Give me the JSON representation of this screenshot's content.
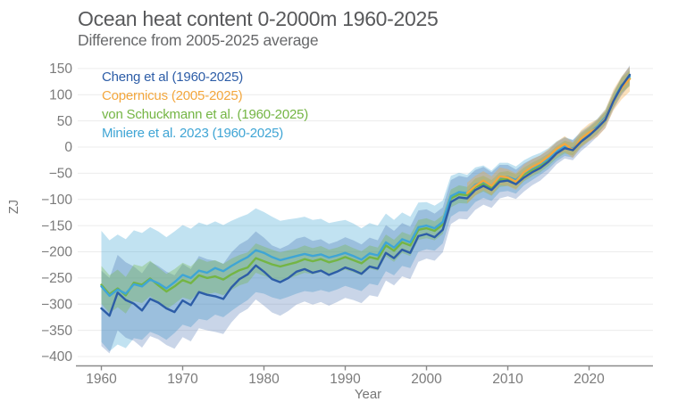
{
  "header": {
    "title": "Ocean heat content 0-2000m 1960-2025",
    "subtitle": "Difference from 2005-2025 average"
  },
  "axes": {
    "y_label": "ZJ",
    "x_label": "Year",
    "y_ticks": [
      150,
      100,
      50,
      0,
      -50,
      -100,
      -150,
      -200,
      -250,
      -300,
      -350,
      -400
    ],
    "x_ticks": [
      1960,
      1970,
      1980,
      1990,
      2000,
      2010,
      2020
    ]
  },
  "colors": {
    "title_text": "#58595b",
    "subtitle_text": "#67686a",
    "axis_text": "#7b7b7b",
    "axis_line": "#8a8a8a",
    "gridline": "#ececec",
    "background": "#ffffff"
  },
  "chart_data": {
    "type": "line",
    "title": "Ocean heat content 0-2000m 1960-2025",
    "subtitle": "Difference from 2005-2025 average",
    "xlabel": "Year",
    "ylabel": "ZJ",
    "xlim": [
      1957,
      2028
    ],
    "ylim": [
      -420,
      160
    ],
    "grid": "horizontal",
    "legend_position": "inside-top-left",
    "units": "ZJ (zettajoules), anomaly relative to 2005-2025 average",
    "legend": [
      {
        "id": "cheng",
        "label": "Cheng et al (1960-2025)",
        "color": "#2d5da7"
      },
      {
        "id": "copernicus",
        "label": "Copernicus (2005-2025)",
        "color": "#f3a73e"
      },
      {
        "id": "vonschuckmann",
        "label": "von Schuckmann et al. (1960-2025)",
        "color": "#74b544"
      },
      {
        "id": "miniere",
        "label": "Miniere et al. 2023 (1960-2025)",
        "color": "#3fa5d5"
      }
    ],
    "series": [
      {
        "id": "cheng",
        "name": "Cheng et al (1960-2025)",
        "color": "#2d5da7",
        "band_opacity": 0.26,
        "x_start": 1960,
        "x_step": 1,
        "values": [
          -308,
          -322,
          -278,
          -292,
          -299,
          -312,
          -290,
          -297,
          -308,
          -315,
          -293,
          -302,
          -277,
          -282,
          -285,
          -290,
          -268,
          -252,
          -243,
          -226,
          -238,
          -252,
          -258,
          -250,
          -238,
          -233,
          -240,
          -236,
          -244,
          -238,
          -230,
          -235,
          -242,
          -228,
          -232,
          -202,
          -212,
          -196,
          -202,
          -170,
          -166,
          -172,
          -158,
          -105,
          -96,
          -98,
          -82,
          -74,
          -82,
          -66,
          -64,
          -71,
          -58,
          -48,
          -40,
          -28,
          -12,
          -2,
          -6,
          10,
          22,
          36,
          52,
          88,
          116,
          138
        ],
        "band_halfwidth": [
          72,
          72,
          72,
          72,
          71,
          71,
          71,
          70,
          70,
          70,
          70,
          69,
          69,
          68,
          68,
          67,
          67,
          66,
          66,
          65,
          65,
          64,
          64,
          63,
          63,
          62,
          61,
          60,
          59,
          58,
          58,
          57,
          56,
          55,
          54,
          53,
          52,
          51,
          50,
          49,
          47,
          45,
          43,
          42,
          41,
          40,
          38,
          36,
          34,
          32,
          30,
          28,
          27,
          25,
          24,
          22,
          21,
          20,
          19,
          18,
          17,
          16,
          16,
          16,
          17,
          18
        ]
      },
      {
        "id": "copernicus",
        "name": "Copernicus (2005-2025)",
        "color": "#f3a73e",
        "band_opacity": 0.35,
        "x_start": 2005,
        "x_step": 1,
        "values": [
          -88,
          -74,
          -64,
          -74,
          -56,
          -58,
          -66,
          -48,
          -38,
          -30,
          -18,
          -4,
          6,
          -6,
          16,
          28,
          36,
          54,
          90,
          113,
          130
        ],
        "band_halfwidth": [
          20,
          19,
          18,
          18,
          17,
          16,
          16,
          15,
          15,
          14,
          14,
          14,
          15,
          15,
          16,
          17,
          17,
          18,
          20,
          22,
          24
        ]
      },
      {
        "id": "vonschuckmann",
        "name": "von Schuckmann et al. (1960-2025)",
        "color": "#74b544",
        "band_opacity": 0.33,
        "x_start": 1960,
        "x_step": 1,
        "values": [
          -263,
          -281,
          -270,
          -283,
          -259,
          -263,
          -251,
          -264,
          -276,
          -266,
          -254,
          -260,
          -245,
          -250,
          -247,
          -253,
          -243,
          -235,
          -230,
          -212,
          -218,
          -224,
          -228,
          -224,
          -220,
          -214,
          -218,
          -214,
          -220,
          -216,
          -210,
          -216,
          -222,
          -210,
          -214,
          -188,
          -198,
          -182,
          -188,
          -158,
          -155,
          -160,
          -148,
          -98,
          -90,
          -92,
          -76,
          -70,
          -78,
          -62,
          -60,
          -66,
          -52,
          -43,
          -35,
          -24,
          -10,
          0,
          -4,
          13,
          25,
          38,
          56,
          90,
          118,
          131
        ],
        "band_halfwidth": [
          36,
          36,
          36,
          35,
          35,
          35,
          34,
          34,
          34,
          33,
          33,
          32,
          32,
          31,
          31,
          30,
          30,
          29,
          29,
          28,
          28,
          28,
          27,
          27,
          26,
          26,
          25,
          25,
          24,
          24,
          24,
          23,
          23,
          22,
          22,
          21,
          21,
          20,
          20,
          19,
          19,
          18,
          18,
          17,
          17,
          16,
          16,
          15,
          15,
          14,
          14,
          14,
          13,
          13,
          13,
          12,
          12,
          12,
          12,
          12,
          12,
          12,
          12,
          13,
          14,
          15
        ]
      },
      {
        "id": "miniere",
        "name": "Miniere et al. 2023 (1960-2025)",
        "color": "#3fa5d5",
        "band_opacity": 0.32,
        "x_start": 1960,
        "x_step": 1,
        "values": [
          -266,
          -284,
          -272,
          -280,
          -262,
          -266,
          -253,
          -260,
          -270,
          -258,
          -244,
          -250,
          -236,
          -240,
          -231,
          -237,
          -227,
          -218,
          -210,
          -197,
          -202,
          -210,
          -216,
          -212,
          -208,
          -204,
          -208,
          -205,
          -211,
          -207,
          -202,
          -208,
          -215,
          -203,
          -207,
          -182,
          -192,
          -176,
          -182,
          -153,
          -150,
          -155,
          -143,
          -94,
          -86,
          -88,
          -72,
          -66,
          -74,
          -58,
          -57,
          -63,
          -49,
          -40,
          -32,
          -22,
          -8,
          1,
          -3,
          14,
          26,
          39,
          57,
          90,
          117,
          135
        ],
        "band_halfwidth": [
          106,
          106,
          105,
          104,
          103,
          102,
          100,
          99,
          98,
          97,
          95,
          94,
          92,
          91,
          89,
          88,
          86,
          84,
          82,
          80,
          78,
          77,
          75,
          74,
          72,
          71,
          69,
          68,
          66,
          65,
          63,
          62,
          60,
          58,
          57,
          55,
          53,
          51,
          49,
          47,
          45,
          43,
          41,
          39,
          37,
          35,
          33,
          31,
          29,
          28,
          27,
          26,
          24,
          23,
          21,
          20,
          19,
          18,
          17,
          16,
          15,
          15,
          15,
          16,
          17,
          18
        ]
      }
    ]
  }
}
